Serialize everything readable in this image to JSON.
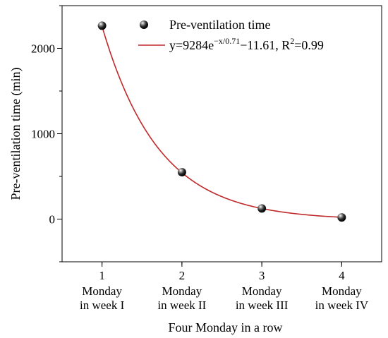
{
  "chart_data": {
    "type": "scatter",
    "xlabel": "Four Monday in a row",
    "ylabel": "Pre-ventilation time (min)",
    "xlim": [
      0.5,
      4.5
    ],
    "ylim": [
      -500,
      2500
    ],
    "x_ticks": [
      1,
      2,
      3,
      4
    ],
    "x_tick_labels": [
      [
        "1",
        "Monday",
        "in week I"
      ],
      [
        "2",
        "Monday",
        "in week II"
      ],
      [
        "3",
        "Monday",
        "in week III"
      ],
      [
        "4",
        "Monday",
        "in week IV"
      ]
    ],
    "y_ticks": [
      0,
      1000,
      2000
    ],
    "y_tick_labels": [
      "0",
      "1000",
      "2000"
    ],
    "grid": false,
    "legend_position": "top-right",
    "series": [
      {
        "name": "Pre-ventilation time",
        "kind": "scatter",
        "marker": "black-sphere",
        "points": [
          {
            "x": 1,
            "y": 2265
          },
          {
            "x": 2,
            "y": 550
          },
          {
            "x": 3,
            "y": 125
          },
          {
            "x": 4,
            "y": 20
          }
        ]
      },
      {
        "name_parts": {
          "prefix": "y=9284e",
          "exponent": "−x/0.71",
          "middle": "−11.61, R",
          "r_exp": "2",
          "suffix": "=0.99"
        },
        "kind": "fit-line",
        "color": "#c0282a",
        "model": {
          "a": 9284,
          "t": 0.71,
          "c": -11.61
        }
      }
    ]
  }
}
